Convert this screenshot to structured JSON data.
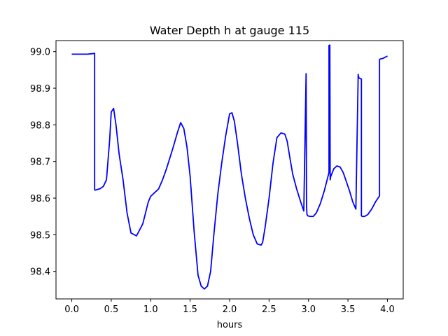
{
  "chart_data": {
    "type": "line",
    "title": "Water Depth h at gauge 115",
    "xlabel": "hours",
    "ylabel": "",
    "xlim": [
      -0.2,
      4.2
    ],
    "ylim": [
      98.325,
      99.03
    ],
    "xticks": [
      0.0,
      0.5,
      1.0,
      1.5,
      2.0,
      2.5,
      3.0,
      3.5,
      4.0
    ],
    "xtick_labels": [
      "0.0",
      "0.5",
      "1.0",
      "1.5",
      "2.0",
      "2.5",
      "3.0",
      "3.5",
      "4.0"
    ],
    "yticks": [
      98.4,
      98.5,
      98.6,
      98.7,
      98.8,
      98.9,
      99.0
    ],
    "ytick_labels": [
      "98.4",
      "98.5",
      "98.6",
      "98.7",
      "98.8",
      "98.9",
      "99.0"
    ],
    "grid": false,
    "legend": "none",
    "series": [
      {
        "color": "#0000ff",
        "x": [
          0.0,
          0.2,
          0.29,
          0.29,
          0.3,
          0.36,
          0.4,
          0.44,
          0.48,
          0.5,
          0.53,
          0.56,
          0.6,
          0.65,
          0.7,
          0.75,
          0.82,
          0.9,
          0.97,
          1.0,
          1.05,
          1.1,
          1.15,
          1.2,
          1.28,
          1.34,
          1.38,
          1.42,
          1.46,
          1.5,
          1.55,
          1.6,
          1.64,
          1.68,
          1.72,
          1.76,
          1.8,
          1.85,
          1.9,
          1.95,
          2.0,
          2.03,
          2.06,
          2.1,
          2.15,
          2.2,
          2.25,
          2.3,
          2.35,
          2.4,
          2.42,
          2.45,
          2.5,
          2.55,
          2.6,
          2.65,
          2.7,
          2.73,
          2.76,
          2.8,
          2.85,
          2.9,
          2.94,
          2.97,
          2.97,
          2.975,
          2.98,
          2.99,
          3.02,
          3.06,
          3.1,
          3.15,
          3.2,
          3.26,
          3.26,
          3.27,
          3.275,
          3.28,
          3.32,
          3.36,
          3.4,
          3.44,
          3.48,
          3.52,
          3.56,
          3.6,
          3.63,
          3.63,
          3.64,
          3.67,
          3.67,
          3.68,
          3.71,
          3.75,
          3.8,
          3.85,
          3.9,
          3.9,
          3.91,
          3.95,
          4.0
        ],
        "y": [
          98.993,
          98.993,
          98.995,
          98.622,
          98.622,
          98.626,
          98.632,
          98.65,
          98.76,
          98.835,
          98.845,
          98.8,
          98.72,
          98.65,
          98.56,
          98.505,
          98.497,
          98.53,
          98.59,
          98.605,
          98.615,
          98.625,
          98.65,
          98.68,
          98.735,
          98.78,
          98.806,
          98.79,
          98.74,
          98.66,
          98.51,
          98.39,
          98.36,
          98.352,
          98.36,
          98.4,
          98.5,
          98.61,
          98.695,
          98.77,
          98.83,
          98.833,
          98.81,
          98.75,
          98.665,
          98.6,
          98.545,
          98.5,
          98.475,
          98.472,
          98.48,
          98.52,
          98.6,
          98.695,
          98.765,
          98.778,
          98.775,
          98.755,
          98.715,
          98.665,
          98.625,
          98.59,
          98.565,
          98.94,
          98.937,
          98.58,
          98.556,
          98.552,
          98.55,
          98.55,
          98.56,
          98.585,
          98.62,
          98.67,
          99.017,
          99.018,
          98.65,
          98.658,
          98.68,
          98.688,
          98.685,
          98.67,
          98.645,
          98.62,
          98.59,
          98.57,
          98.938,
          98.935,
          98.928,
          98.925,
          98.552,
          98.55,
          98.55,
          98.555,
          98.57,
          98.59,
          98.606,
          98.978,
          98.98,
          98.982,
          98.988
        ]
      }
    ]
  }
}
